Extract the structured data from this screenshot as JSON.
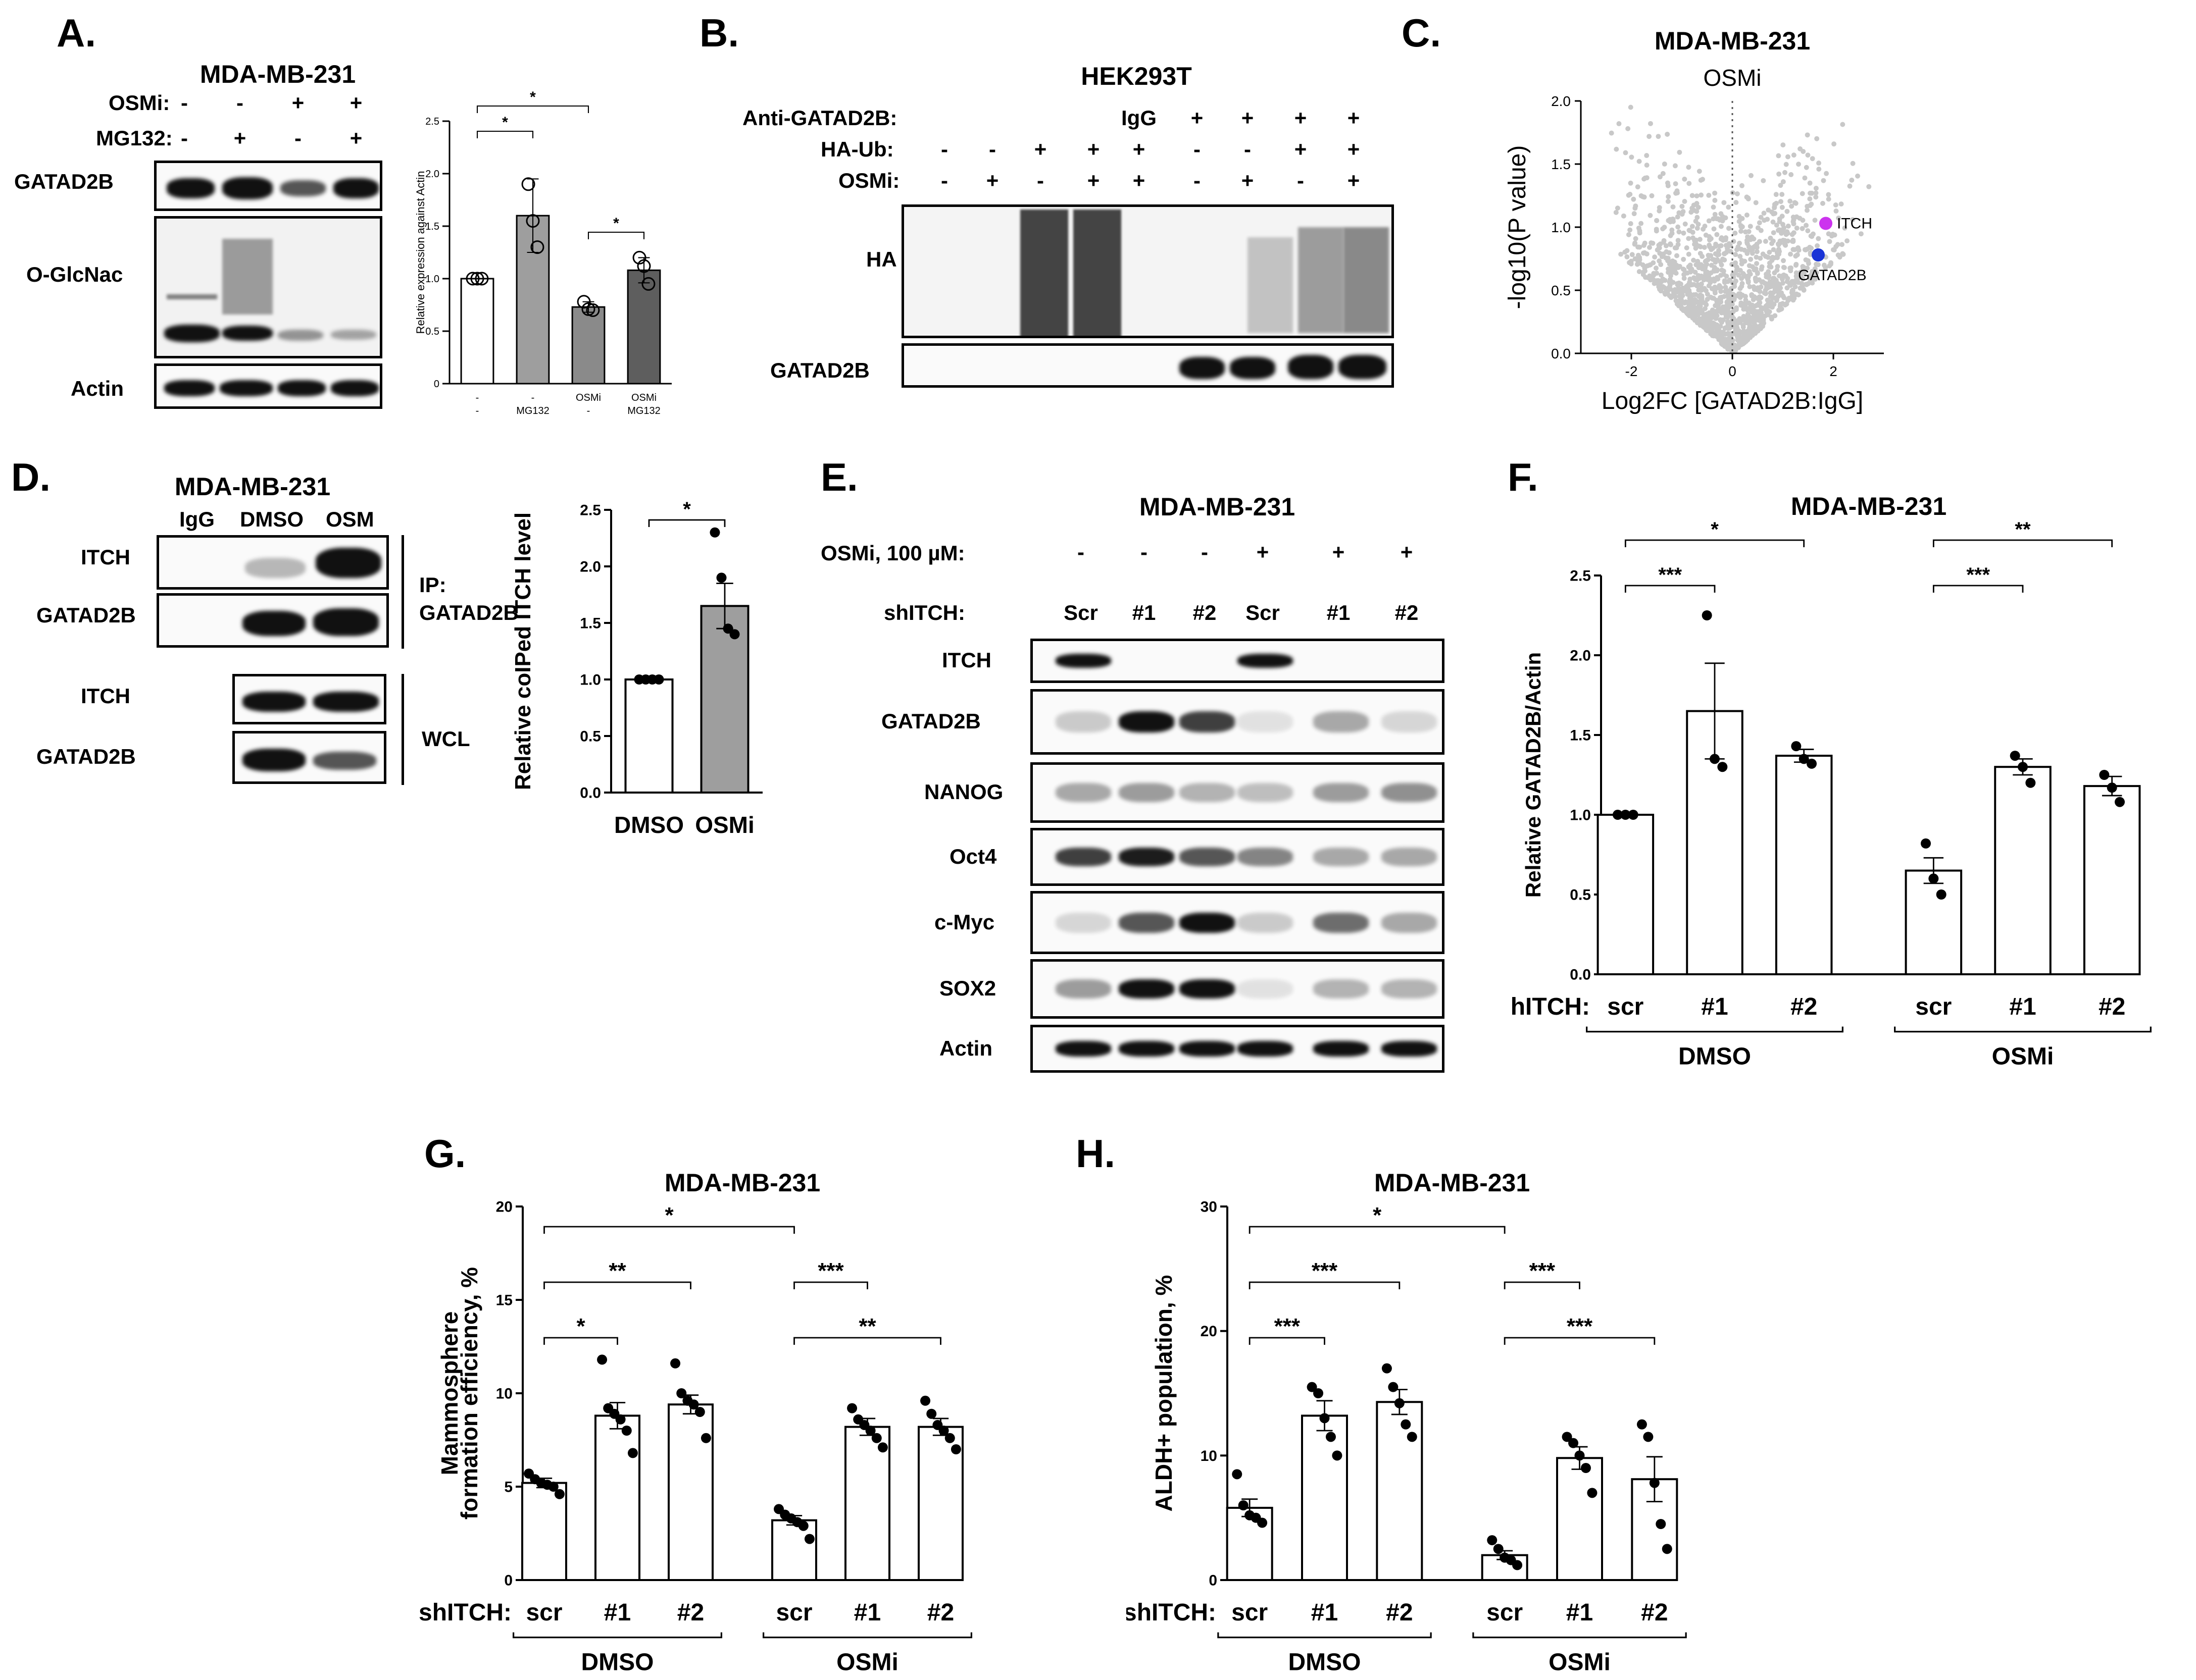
{
  "panels": {
    "A": {
      "letter": "A.",
      "header": "MDA-MB-231",
      "rows": [
        {
          "name": "OSMi:",
          "signs": [
            "-",
            "-",
            "+",
            "+"
          ]
        },
        {
          "name": "MG132:",
          "signs": [
            "-",
            "+",
            "-",
            "+"
          ]
        }
      ],
      "blots": [
        "GATAD2B",
        "O-GlcNac",
        "Actin"
      ]
    },
    "B": {
      "letter": "B.",
      "header": "HEK293T",
      "rows": [
        {
          "name": "Anti-GATAD2B:",
          "signs": [
            "",
            "",
            "",
            "",
            "IgG",
            "+",
            "+",
            "+",
            "+"
          ]
        },
        {
          "name": "HA-Ub:",
          "signs": [
            "-",
            "-",
            "+",
            "+",
            "+",
            "-",
            "-",
            "+",
            "+"
          ]
        },
        {
          "name": "OSMi:",
          "signs": [
            "-",
            "+",
            "-",
            "+",
            "+",
            "-",
            "+",
            "-",
            "+"
          ]
        }
      ],
      "blots": [
        "HA",
        "GATAD2B"
      ]
    },
    "C": {
      "letter": "C."
    },
    "D": {
      "letter": "D.",
      "header": "MDA-MB-231",
      "lanes": [
        "IgG",
        "DMSO",
        "OSM"
      ],
      "blots_ip": [
        "ITCH",
        "GATAD2B"
      ],
      "blots_wcl": [
        "ITCH",
        "GATAD2B"
      ],
      "ip_label_1": "IP:",
      "ip_label_2": "GATAD2B",
      "wcl_label": "WCL"
    },
    "E": {
      "letter": "E.",
      "header": "MDA-MB-231",
      "osmi_label": "OSMi, 100 µM:",
      "osmi_signs": [
        "-",
        "-",
        "-",
        "+",
        "+",
        "+"
      ],
      "sh_label": "shITCH:",
      "sh_lanes": [
        "Scr",
        "#1",
        "#2",
        "Scr",
        "#1",
        "#2"
      ],
      "blots": [
        "ITCH",
        "GATAD2B",
        "NANOG",
        "Oct4",
        "c-Myc",
        "SOX2",
        "Actin"
      ]
    },
    "F": {
      "letter": "F."
    },
    "G": {
      "letter": "G."
    },
    "H": {
      "letter": "H."
    }
  },
  "chart_data": [
    {
      "panel": "A",
      "type": "bar",
      "title": "",
      "ylabel": "Relative expression against Actin",
      "ylim": [
        0,
        2.5
      ],
      "yticks": [
        0,
        0.5,
        1.0,
        1.5,
        2.0,
        2.5
      ],
      "categories": [
        [
          "-",
          "-"
        ],
        [
          "-",
          "MG132"
        ],
        [
          "OSMi",
          "-"
        ],
        [
          "OSMi",
          "MG132"
        ]
      ],
      "values": [
        1.0,
        1.6,
        0.73,
        1.08
      ],
      "errors": [
        0,
        0.35,
        0.05,
        0.12
      ],
      "colors": [
        "#ffffff",
        "#9e9e9e",
        "#8a8a8a",
        "#5e5e5e"
      ],
      "points": [
        [
          1.0,
          1.0,
          1.0
        ],
        [
          1.9,
          1.55,
          1.3
        ],
        [
          0.78,
          0.71,
          0.7
        ],
        [
          1.2,
          1.12,
          0.95
        ]
      ],
      "significance": [
        {
          "from": 0,
          "to": 1,
          "label": "*"
        },
        {
          "from": 0,
          "to": 2,
          "label": "*"
        },
        {
          "from": 2,
          "to": 3,
          "label": "*"
        }
      ]
    },
    {
      "panel": "C",
      "type": "scatter",
      "title": "MDA-MB-231",
      "subtitle": "OSMi",
      "xlabel": "Log2FC [GATAD2B:IgG]",
      "ylabel": "-log10(P value)",
      "xlim": [
        -3,
        3
      ],
      "ylim": [
        0,
        2.0
      ],
      "xticks": [
        -2,
        0,
        2
      ],
      "yticks": [
        0.0,
        0.5,
        1.0,
        1.5,
        2.0
      ],
      "highlights": [
        {
          "name": "ITCH",
          "x": 1.85,
          "y": 1.03,
          "color": "#cc33ee"
        },
        {
          "name": "GATAD2B",
          "x": 1.7,
          "y": 0.78,
          "color": "#1a33d6"
        }
      ]
    },
    {
      "panel": "D",
      "type": "bar",
      "title": "",
      "ylabel": "Relative coIPed ITCH level",
      "ylim": [
        0,
        2.5
      ],
      "yticks": [
        0.0,
        0.5,
        1.0,
        1.5,
        2.0,
        2.5
      ],
      "categories": [
        "DMSO",
        "OSMi"
      ],
      "values": [
        1.0,
        1.65
      ],
      "errors": [
        0,
        0.2
      ],
      "colors": [
        "#ffffff",
        "#9e9e9e"
      ],
      "points": [
        [
          1.0,
          1.0,
          1.0,
          1.0
        ],
        [
          2.3,
          1.9,
          1.45,
          1.4
        ]
      ],
      "significance": [
        {
          "from": 0,
          "to": 1,
          "label": "*"
        }
      ]
    },
    {
      "panel": "F",
      "type": "bar",
      "title": "MDA-MB-231",
      "ylabel": "Relative GATAD2B/Actin",
      "ylim": [
        0,
        2.5
      ],
      "yticks": [
        0.0,
        0.5,
        1.0,
        1.5,
        2.0,
        2.5
      ],
      "group_label": "shITCH:",
      "categories": [
        "scr",
        "#1",
        "#2",
        "scr",
        "#1",
        "#2"
      ],
      "groups": [
        "DMSO",
        "OSMi"
      ],
      "values": [
        1.0,
        1.65,
        1.37,
        0.65,
        1.3,
        1.18
      ],
      "errors": [
        0,
        0.3,
        0.04,
        0.08,
        0.05,
        0.06
      ],
      "points": [
        [
          1.0,
          1.0,
          1.0
        ],
        [
          2.25,
          1.35,
          1.3
        ],
        [
          1.43,
          1.35,
          1.32
        ],
        [
          0.82,
          0.6,
          0.5
        ],
        [
          1.37,
          1.3,
          1.2
        ],
        [
          1.25,
          1.17,
          1.08
        ]
      ],
      "significance": [
        {
          "from": 0,
          "to": 1,
          "label": "***"
        },
        {
          "from": 0,
          "to": 2,
          "label": "*"
        },
        {
          "from": 3,
          "to": 4,
          "label": "***"
        },
        {
          "from": 3,
          "to": 5,
          "label": "**"
        }
      ]
    },
    {
      "panel": "G",
      "type": "bar",
      "title": "MDA-MB-231",
      "ylabel": "Mammosphere formation efficiency, %",
      "ylabel_1": "Mammosphere",
      "ylabel_2": "formation efficiency, %",
      "ylim": [
        0,
        20
      ],
      "yticks": [
        0,
        5,
        10,
        15,
        20
      ],
      "group_label": "shITCH:",
      "categories": [
        "scr",
        "#1",
        "#2",
        "scr",
        "#1",
        "#2"
      ],
      "groups": [
        "DMSO",
        "OSMi"
      ],
      "values": [
        5.2,
        8.8,
        9.4,
        3.2,
        8.2,
        8.2
      ],
      "errors": [
        0.25,
        0.7,
        0.5,
        0.25,
        0.45,
        0.45
      ],
      "points": [
        [
          5.7,
          5.4,
          5.2,
          5.1,
          5.0,
          4.6
        ],
        [
          11.8,
          9.2,
          8.9,
          8.6,
          8.0,
          6.8
        ],
        [
          11.6,
          10.0,
          9.6,
          9.4,
          9.0,
          7.6
        ],
        [
          3.8,
          3.5,
          3.3,
          3.1,
          2.9,
          2.2
        ],
        [
          9.2,
          8.6,
          8.3,
          8.0,
          7.6,
          7.1
        ],
        [
          9.6,
          8.9,
          8.3,
          8.0,
          7.6,
          7.0
        ]
      ],
      "significance": [
        {
          "from": 0,
          "to": 1,
          "label": "*"
        },
        {
          "from": 0,
          "to": 2,
          "label": "**"
        },
        {
          "from": 0,
          "to": 3,
          "label": "*"
        },
        {
          "from": 3,
          "to": 4,
          "label": "***"
        },
        {
          "from": 3,
          "to": 5,
          "label": "**"
        }
      ]
    },
    {
      "panel": "H",
      "type": "bar",
      "title": "MDA-MB-231",
      "ylabel": "ALDH+ population, %",
      "ylim": [
        0,
        30
      ],
      "yticks": [
        0,
        10,
        20,
        30
      ],
      "group_label": "shITCH:",
      "categories": [
        "scr",
        "#1",
        "#2",
        "scr",
        "#1",
        "#2"
      ],
      "groups": [
        "DMSO",
        "OSMi"
      ],
      "values": [
        5.8,
        13.2,
        14.3,
        2.0,
        9.8,
        8.1
      ],
      "errors": [
        0.7,
        1.2,
        1.0,
        0.35,
        0.9,
        1.8
      ],
      "points": [
        [
          8.5,
          6.0,
          5.2,
          5.0,
          4.6
        ],
        [
          15.5,
          15.0,
          13.0,
          11.5,
          10.0
        ],
        [
          17.0,
          15.5,
          14.2,
          12.5,
          11.5
        ],
        [
          3.2,
          2.5,
          1.8,
          1.6,
          1.2
        ],
        [
          11.5,
          11.0,
          10.0,
          9.0,
          7.0
        ],
        [
          12.5,
          11.5,
          7.8,
          4.5,
          2.5
        ]
      ],
      "significance": [
        {
          "from": 0,
          "to": 1,
          "label": "***"
        },
        {
          "from": 0,
          "to": 2,
          "label": "***"
        },
        {
          "from": 0,
          "to": 3,
          "label": "*"
        },
        {
          "from": 3,
          "to": 4,
          "label": "***"
        },
        {
          "from": 3,
          "to": 5,
          "label": "***"
        }
      ]
    }
  ]
}
